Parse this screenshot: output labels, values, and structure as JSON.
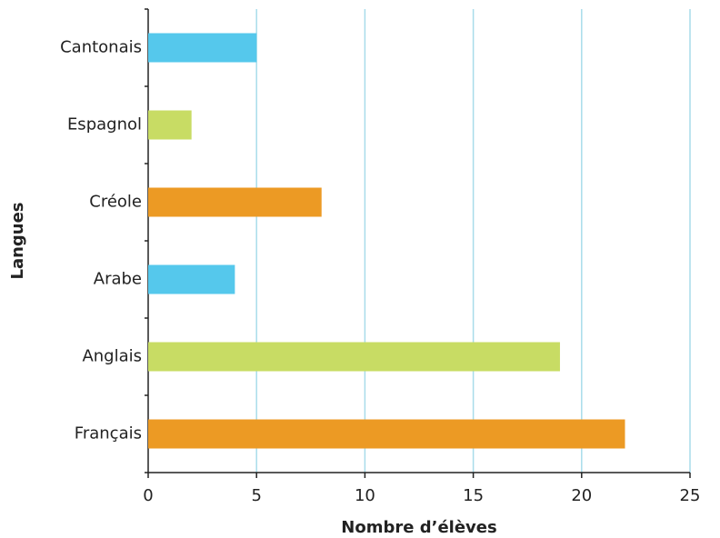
{
  "chart_data": {
    "type": "barh",
    "categories": [
      "Cantonais",
      "Espagnol",
      "Créole",
      "Arabe",
      "Anglais",
      "Français"
    ],
    "values": [
      5,
      2,
      8,
      4,
      19,
      22
    ],
    "colors": [
      "#55c8ec",
      "#c8dc64",
      "#ec9a24",
      "#55c8ec",
      "#c8dc64",
      "#ec9a24"
    ],
    "xlim": [
      0,
      25
    ],
    "xticks": [
      0,
      5,
      10,
      15,
      20,
      25
    ],
    "grid": true,
    "xlabel": "Nombre d’élèves",
    "ylabel": "Langues"
  }
}
